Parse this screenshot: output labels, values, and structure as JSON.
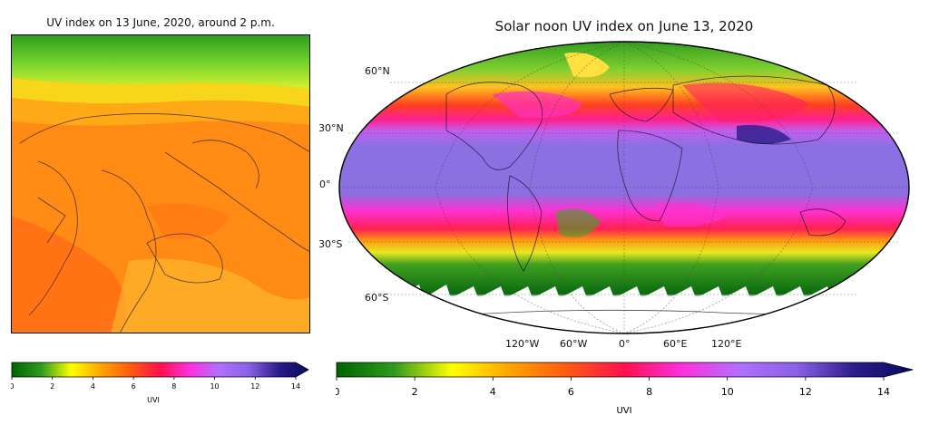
{
  "left_panel": {
    "title": "UV index on 13 June, 2020, around 2 p.m."
  },
  "right_panel": {
    "title": "Solar noon UV index on June 13, 2020",
    "lat_labels": [
      "60°N",
      "30°N",
      "0°",
      "30°S",
      "60°S"
    ],
    "lon_labels": [
      "120°W",
      "60°W",
      "0°",
      "60°E",
      "120°E"
    ]
  },
  "colorbar_left": {
    "label": "UVI",
    "ticks": [
      "0",
      "2",
      "4",
      "6",
      "8",
      "10",
      "12",
      "14"
    ],
    "range": [
      0,
      14
    ],
    "extend": "max"
  },
  "colorbar_right": {
    "label": "UVI",
    "ticks": [
      "0",
      "2",
      "4",
      "6",
      "8",
      "10",
      "12",
      "14"
    ],
    "range": [
      0,
      14
    ],
    "extend": "max"
  },
  "colors": {
    "colormap": [
      "#006400",
      "#2e9b1e",
      "#ffff00",
      "#ffa500",
      "#ff5a10",
      "#ff1050",
      "#ff30e0",
      "#b070ff",
      "#8a60e8",
      "#2c1b8a",
      "#0a0a60"
    ]
  }
}
